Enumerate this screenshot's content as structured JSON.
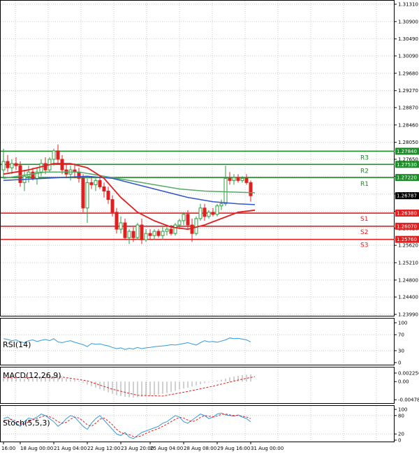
{
  "chart_data": {
    "type": "candlestick",
    "instrument_note": "",
    "main": {
      "ylim": [
        1.2399,
        1.3131
      ],
      "yticks": [
        "1.31310",
        "1.30900",
        "1.30490",
        "1.30090",
        "1.29680",
        "1.29270",
        "1.28870",
        "1.28460",
        "1.28050",
        "1.27650",
        "1.27240",
        "1.26830",
        "1.26420",
        "1.26020",
        "1.25620",
        "1.25210",
        "1.24800",
        "1.24400",
        "1.23990"
      ],
      "current_price": "1.26787",
      "levels": [
        {
          "name": "R3",
          "price": "1.27840",
          "value": 1.2784,
          "kind": "resistance"
        },
        {
          "name": "R2",
          "price": "1.27530",
          "value": 1.2753,
          "kind": "resistance"
        },
        {
          "name": "R1",
          "price": "1.27220",
          "value": 1.2722,
          "kind": "resistance"
        },
        {
          "name": "S1",
          "price": "1.26380",
          "value": 1.2638,
          "kind": "support"
        },
        {
          "name": "S2",
          "price": "1.26070",
          "value": 1.2607,
          "kind": "support"
        },
        {
          "name": "S3",
          "price": "1.25760",
          "value": 1.2576,
          "kind": "support"
        }
      ],
      "candles": [
        {
          "o": 1.274,
          "h": 1.279,
          "l": 1.272,
          "c": 1.276
        },
        {
          "o": 1.276,
          "h": 1.2775,
          "l": 1.2735,
          "c": 1.2745
        },
        {
          "o": 1.2745,
          "h": 1.2765,
          "l": 1.273,
          "c": 1.2755
        },
        {
          "o": 1.2755,
          "h": 1.277,
          "l": 1.274,
          "c": 1.275
        },
        {
          "o": 1.275,
          "h": 1.276,
          "l": 1.27,
          "c": 1.271
        },
        {
          "o": 1.271,
          "h": 1.274,
          "l": 1.269,
          "c": 1.2725
        },
        {
          "o": 1.2725,
          "h": 1.275,
          "l": 1.271,
          "c": 1.2735
        },
        {
          "o": 1.2735,
          "h": 1.2745,
          "l": 1.2715,
          "c": 1.272
        },
        {
          "o": 1.272,
          "h": 1.2745,
          "l": 1.2705,
          "c": 1.2735
        },
        {
          "o": 1.2735,
          "h": 1.2765,
          "l": 1.2725,
          "c": 1.2755
        },
        {
          "o": 1.2755,
          "h": 1.277,
          "l": 1.273,
          "c": 1.274
        },
        {
          "o": 1.274,
          "h": 1.277,
          "l": 1.2735,
          "c": 1.2765
        },
        {
          "o": 1.2765,
          "h": 1.279,
          "l": 1.275,
          "c": 1.2785
        },
        {
          "o": 1.2785,
          "h": 1.28,
          "l": 1.2755,
          "c": 1.2765
        },
        {
          "o": 1.2765,
          "h": 1.2775,
          "l": 1.273,
          "c": 1.274
        },
        {
          "o": 1.274,
          "h": 1.2755,
          "l": 1.272,
          "c": 1.273
        },
        {
          "o": 1.273,
          "h": 1.275,
          "l": 1.2715,
          "c": 1.274
        },
        {
          "o": 1.274,
          "h": 1.2755,
          "l": 1.272,
          "c": 1.2735
        },
        {
          "o": 1.2735,
          "h": 1.2745,
          "l": 1.271,
          "c": 1.272
        },
        {
          "o": 1.272,
          "h": 1.273,
          "l": 1.264,
          "c": 1.265
        },
        {
          "o": 1.265,
          "h": 1.272,
          "l": 1.2615,
          "c": 1.271
        },
        {
          "o": 1.271,
          "h": 1.2725,
          "l": 1.2695,
          "c": 1.2705
        },
        {
          "o": 1.2705,
          "h": 1.272,
          "l": 1.269,
          "c": 1.2715
        },
        {
          "o": 1.2715,
          "h": 1.2725,
          "l": 1.2695,
          "c": 1.27
        },
        {
          "o": 1.27,
          "h": 1.271,
          "l": 1.2675,
          "c": 1.269
        },
        {
          "o": 1.269,
          "h": 1.27,
          "l": 1.266,
          "c": 1.267
        },
        {
          "o": 1.267,
          "h": 1.268,
          "l": 1.263,
          "c": 1.264
        },
        {
          "o": 1.264,
          "h": 1.265,
          "l": 1.259,
          "c": 1.26
        },
        {
          "o": 1.26,
          "h": 1.263,
          "l": 1.259,
          "c": 1.2615
        },
        {
          "o": 1.2615,
          "h": 1.2625,
          "l": 1.2575,
          "c": 1.258
        },
        {
          "o": 1.258,
          "h": 1.26,
          "l": 1.2565,
          "c": 1.2595
        },
        {
          "o": 1.2595,
          "h": 1.2605,
          "l": 1.257,
          "c": 1.258
        },
        {
          "o": 1.258,
          "h": 1.2615,
          "l": 1.2575,
          "c": 1.261
        },
        {
          "o": 1.261,
          "h": 1.2625,
          "l": 1.2565,
          "c": 1.2575
        },
        {
          "o": 1.2575,
          "h": 1.26,
          "l": 1.257,
          "c": 1.259
        },
        {
          "o": 1.259,
          "h": 1.26,
          "l": 1.2575,
          "c": 1.2585
        },
        {
          "o": 1.2585,
          "h": 1.26,
          "l": 1.2575,
          "c": 1.2595
        },
        {
          "o": 1.2595,
          "h": 1.26,
          "l": 1.258,
          "c": 1.2585
        },
        {
          "o": 1.2585,
          "h": 1.2605,
          "l": 1.2575,
          "c": 1.2595
        },
        {
          "o": 1.2595,
          "h": 1.261,
          "l": 1.2585,
          "c": 1.26
        },
        {
          "o": 1.26,
          "h": 1.261,
          "l": 1.2585,
          "c": 1.259
        },
        {
          "o": 1.259,
          "h": 1.2615,
          "l": 1.2585,
          "c": 1.261
        },
        {
          "o": 1.261,
          "h": 1.2625,
          "l": 1.26,
          "c": 1.262
        },
        {
          "o": 1.262,
          "h": 1.264,
          "l": 1.261,
          "c": 1.2635
        },
        {
          "o": 1.2635,
          "h": 1.2645,
          "l": 1.26,
          "c": 1.261
        },
        {
          "o": 1.261,
          "h": 1.2625,
          "l": 1.257,
          "c": 1.259
        },
        {
          "o": 1.259,
          "h": 1.263,
          "l": 1.2585,
          "c": 1.2625
        },
        {
          "o": 1.2625,
          "h": 1.266,
          "l": 1.262,
          "c": 1.265
        },
        {
          "o": 1.265,
          "h": 1.266,
          "l": 1.262,
          "c": 1.263
        },
        {
          "o": 1.263,
          "h": 1.2645,
          "l": 1.2625,
          "c": 1.264
        },
        {
          "o": 1.264,
          "h": 1.265,
          "l": 1.263,
          "c": 1.2635
        },
        {
          "o": 1.2635,
          "h": 1.266,
          "l": 1.263,
          "c": 1.2655
        },
        {
          "o": 1.2655,
          "h": 1.267,
          "l": 1.2645,
          "c": 1.266
        },
        {
          "o": 1.266,
          "h": 1.275,
          "l": 1.2655,
          "c": 1.272
        },
        {
          "o": 1.272,
          "h": 1.2735,
          "l": 1.2705,
          "c": 1.2715
        },
        {
          "o": 1.2715,
          "h": 1.273,
          "l": 1.2705,
          "c": 1.2722
        },
        {
          "o": 1.2722,
          "h": 1.273,
          "l": 1.271,
          "c": 1.2715
        },
        {
          "o": 1.2715,
          "h": 1.2725,
          "l": 1.271,
          "c": 1.272
        },
        {
          "o": 1.272,
          "h": 1.273,
          "l": 1.2705,
          "c": 1.271
        },
        {
          "o": 1.271,
          "h": 1.2715,
          "l": 1.2665,
          "c": 1.2679
        }
      ],
      "ma_red": [
        [
          0,
          1.273
        ],
        [
          6,
          1.274
        ],
        [
          12,
          1.2755
        ],
        [
          16,
          1.2755
        ],
        [
          20,
          1.2745
        ],
        [
          24,
          1.272
        ],
        [
          28,
          1.2675
        ],
        [
          32,
          1.264
        ],
        [
          36,
          1.262
        ],
        [
          40,
          1.2605
        ],
        [
          44,
          1.26
        ],
        [
          48,
          1.261
        ],
        [
          52,
          1.2625
        ],
        [
          56,
          1.264
        ],
        [
          60,
          1.2645
        ]
      ],
      "ma_green": [
        [
          0,
          1.272
        ],
        [
          10,
          1.2735
        ],
        [
          18,
          1.2735
        ],
        [
          24,
          1.2725
        ],
        [
          30,
          1.2715
        ],
        [
          36,
          1.2705
        ],
        [
          42,
          1.2695
        ],
        [
          48,
          1.269
        ],
        [
          54,
          1.2688
        ],
        [
          60,
          1.2686
        ]
      ],
      "ma_blue": [
        [
          0,
          1.2715
        ],
        [
          10,
          1.272
        ],
        [
          20,
          1.2725
        ],
        [
          26,
          1.272
        ],
        [
          32,
          1.2705
        ],
        [
          38,
          1.269
        ],
        [
          44,
          1.2675
        ],
        [
          50,
          1.2665
        ],
        [
          56,
          1.266
        ],
        [
          60,
          1.2658
        ]
      ]
    },
    "rsi": {
      "title": "RSI(14)",
      "ylim": [
        0,
        100
      ],
      "yticks": [
        "100",
        "70",
        "30",
        "0"
      ],
      "ytick_values": [
        100,
        70,
        30,
        0
      ],
      "values": [
        60,
        58,
        55,
        57,
        52,
        50,
        55,
        57,
        53,
        56,
        58,
        55,
        60,
        52,
        50,
        53,
        55,
        51,
        48,
        45,
        40,
        48,
        46,
        47,
        44,
        42,
        38,
        35,
        37,
        33,
        36,
        34,
        38,
        35,
        37,
        38,
        40,
        41,
        42,
        43,
        45,
        44,
        46,
        48,
        50,
        47,
        44,
        50,
        55,
        52,
        53,
        51,
        54,
        57,
        62,
        60,
        61,
        59,
        57,
        52
      ]
    },
    "macd": {
      "title": "MACD(12,26,9)",
      "yticks": [
        "0.002256",
        "0.00",
        "-0.004786"
      ],
      "ytick_values": [
        0.002256,
        0.0,
        -0.004786
      ],
      "ylim": [
        -0.0053,
        0.0028
      ],
      "histogram": [
        0.0008,
        0.0009,
        0.001,
        0.0009,
        0.0008,
        0.0007,
        0.0008,
        0.0009,
        0.001,
        0.0011,
        0.0012,
        0.0013,
        0.0014,
        0.0012,
        0.001,
        0.0008,
        0.0006,
        0.0004,
        0.0002,
        -0.0003,
        -0.0008,
        -0.0012,
        -0.0016,
        -0.002,
        -0.0024,
        -0.0028,
        -0.0032,
        -0.0036,
        -0.0038,
        -0.004,
        -0.0041,
        -0.0042,
        -0.0041,
        -0.004,
        -0.0039,
        -0.0038,
        -0.0036,
        -0.0034,
        -0.0032,
        -0.003,
        -0.0027,
        -0.0024,
        -0.0021,
        -0.0018,
        -0.0016,
        -0.0013,
        -0.001,
        -0.0007,
        -0.0004,
        -0.0002,
        0.0001,
        0.0003,
        0.0005,
        0.0008,
        0.0011,
        0.0013,
        0.0015,
        0.0017,
        0.0018,
        0.0019
      ],
      "signal": [
        [
          0,
          0.001
        ],
        [
          8,
          0.0011
        ],
        [
          14,
          0.0012
        ],
        [
          20,
          0.0002
        ],
        [
          26,
          -0.002
        ],
        [
          32,
          -0.0036
        ],
        [
          38,
          -0.0038
        ],
        [
          44,
          -0.0026
        ],
        [
          50,
          -0.0012
        ],
        [
          56,
          0.0004
        ],
        [
          60,
          0.0013
        ]
      ]
    },
    "stoch": {
      "title": "Stoch(5,5,3)",
      "ylim": [
        0,
        100
      ],
      "yticks": [
        "100",
        "80",
        "20",
        "0"
      ],
      "ytick_values": [
        100,
        80,
        20,
        0
      ],
      "k": [
        70,
        75,
        65,
        55,
        45,
        60,
        72,
        68,
        75,
        85,
        80,
        70,
        60,
        45,
        55,
        70,
        80,
        75,
        60,
        45,
        35,
        55,
        70,
        80,
        65,
        50,
        35,
        20,
        15,
        25,
        10,
        5,
        15,
        25,
        30,
        35,
        40,
        45,
        55,
        60,
        70,
        80,
        75,
        60,
        55,
        65,
        75,
        85,
        80,
        70,
        75,
        85,
        88,
        82,
        80,
        78,
        82,
        75,
        70,
        60
      ],
      "d": [
        60,
        65,
        68,
        62,
        55,
        52,
        60,
        66,
        70,
        76,
        80,
        76,
        70,
        60,
        55,
        58,
        68,
        75,
        72,
        62,
        50,
        45,
        55,
        68,
        72,
        62,
        50,
        35,
        25,
        20,
        18,
        12,
        10,
        15,
        22,
        28,
        33,
        38,
        45,
        52,
        60,
        68,
        74,
        72,
        65,
        60,
        65,
        74,
        80,
        78,
        76,
        78,
        84,
        85,
        82,
        80,
        80,
        78,
        75,
        70
      ]
    },
    "x_labels": [
      {
        "label": "16:00",
        "i": 0
      },
      {
        "label": "18 Aug 00:00",
        "i": 4
      },
      {
        "label": "21 Aug 04:00",
        "i": 12
      },
      {
        "label": "22 Aug 12:00",
        "i": 20
      },
      {
        "label": "23 Aug 20:00",
        "i": 28
      },
      {
        "label": "25 Aug 04:00",
        "i": 35
      },
      {
        "label": "28 Aug 08:00",
        "i": 43
      },
      {
        "label": "29 Aug 16:00",
        "i": 51
      },
      {
        "label": "31 Aug 00:00",
        "i": 59
      }
    ],
    "colors": {
      "bull": "#2e9e40",
      "bear": "#e02020",
      "resistance": "#1e8c2a",
      "support": "#e02020",
      "ma_red": "#e02020",
      "ma_green": "#55aa66",
      "ma_blue": "#3355cc",
      "rsi_line": "#3399dd",
      "macd_hist": "#a0a0a0",
      "macd_signal": "#e02020",
      "stoch_k": "#3399dd",
      "stoch_d": "#e02020",
      "grid": "#c8c8c8",
      "price_box": "#000000"
    }
  }
}
